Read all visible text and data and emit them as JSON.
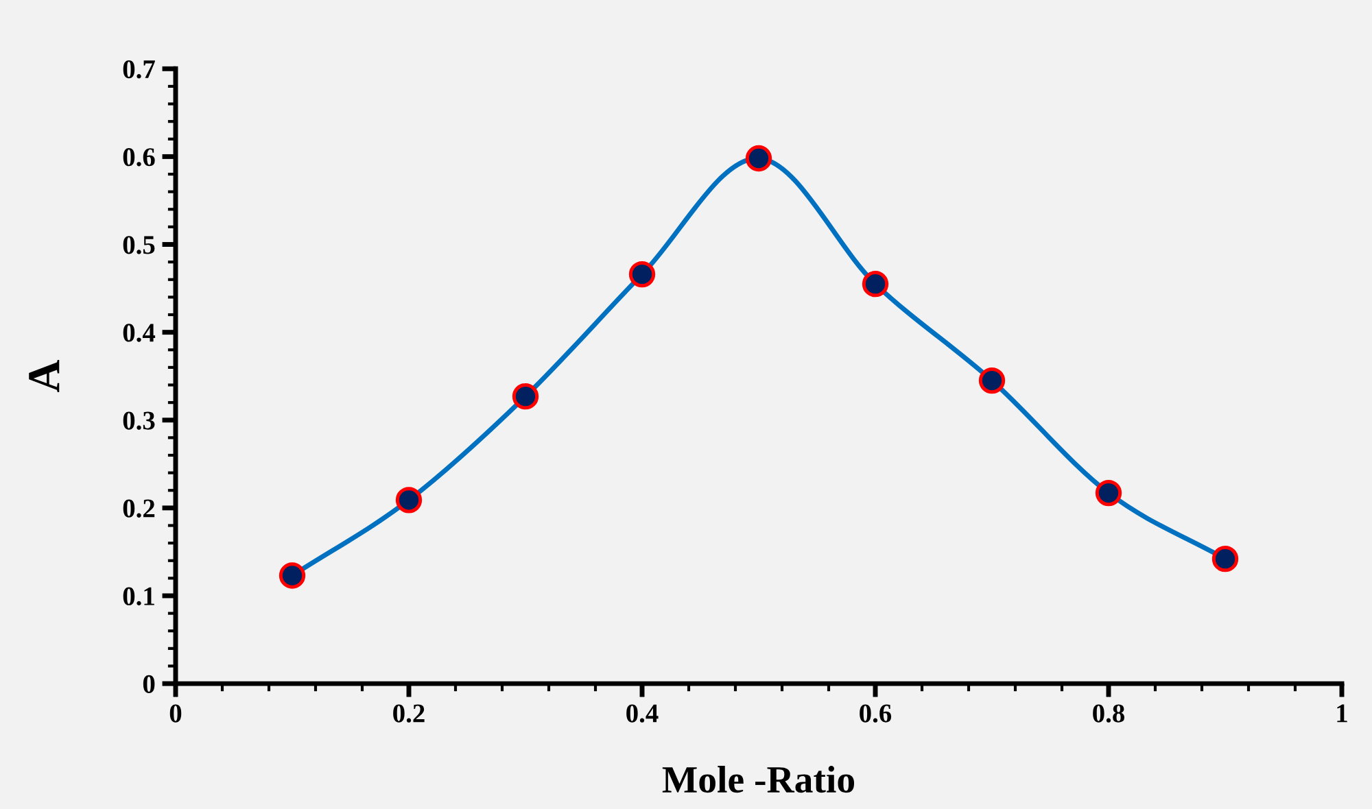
{
  "chart_data": {
    "type": "line",
    "xlabel": "Mole -Ratio",
    "ylabel": "A",
    "x": [
      0.1,
      0.2,
      0.3,
      0.4,
      0.5,
      0.6,
      0.7,
      0.8,
      0.9
    ],
    "series": [
      {
        "color": "#0070c0",
        "values": [
          0.123,
          0.209,
          0.327,
          0.466,
          0.598,
          0.455,
          0.345,
          0.217,
          0.142
        ]
      }
    ],
    "marker": "circle",
    "line_style": "solid",
    "grid": false,
    "xlim": [
      0,
      1
    ],
    "xticks": [
      0,
      0.2,
      0.4,
      0.6,
      0.8,
      1
    ],
    "ylim": [
      0,
      0.7
    ],
    "yticks": [
      0,
      0.1,
      0.2,
      0.3,
      0.4,
      0.5,
      0.6,
      0.7
    ]
  }
}
